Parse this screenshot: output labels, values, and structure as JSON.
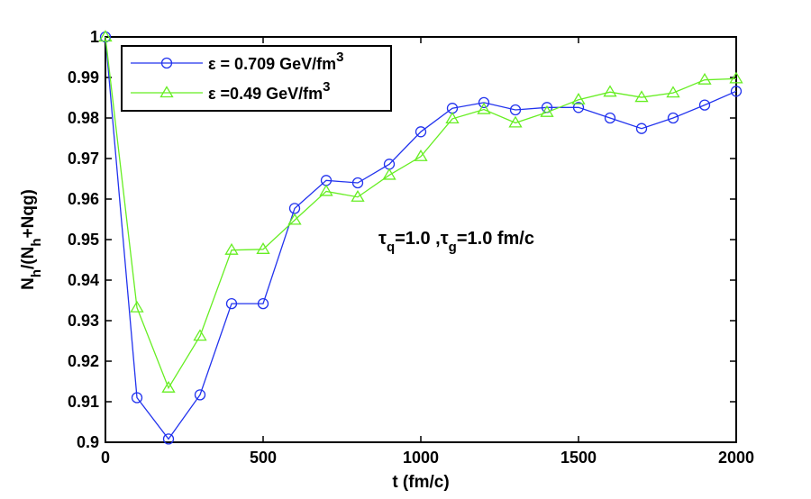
{
  "chart_data": {
    "type": "line",
    "title": "",
    "xlabel": "t (fm/c)",
    "ylabel_parts": {
      "main": "N",
      "sub1": "h",
      "mid": "/(N",
      "sub2": "h",
      "tail": "+Nqg)"
    },
    "xlim": [
      0,
      2000
    ],
    "ylim": [
      0.9,
      1.0
    ],
    "xticks": [
      0,
      500,
      1000,
      1500,
      2000
    ],
    "yticks": [
      0.9,
      0.91,
      0.92,
      0.93,
      0.94,
      0.95,
      0.96,
      0.97,
      0.98,
      0.99,
      1
    ],
    "xtick_labels": [
      "0",
      "500",
      "1000",
      "1500",
      "2000"
    ],
    "ytick_labels": [
      "0.9",
      "0.91",
      "0.92",
      "0.93",
      "0.94",
      "0.95",
      "0.96",
      "0.97",
      "0.98",
      "0.99",
      "1"
    ],
    "grid": false,
    "legend_position": "top-left",
    "series": [
      {
        "name": "ε = 0.709 GeV/fm3",
        "legend_parts": {
          "greek": "ε",
          "text": " = 0.709 GeV/fm",
          "sup": "3"
        },
        "color": "#2233ee",
        "marker": "circle",
        "x": [
          0,
          100,
          200,
          300,
          400,
          500,
          600,
          700,
          800,
          900,
          1000,
          1100,
          1200,
          1300,
          1400,
          1500,
          1600,
          1700,
          1800,
          1900,
          2000
        ],
        "y": [
          1.0,
          0.911,
          0.9008,
          0.9117,
          0.9342,
          0.9342,
          0.9577,
          0.9646,
          0.964,
          0.9686,
          0.9766,
          0.9824,
          0.9838,
          0.982,
          0.9826,
          0.9826,
          0.98,
          0.9774,
          0.98,
          0.9832,
          0.9866
        ]
      },
      {
        "name": "ε =0.49 GeV/fm3",
        "legend_parts": {
          "greek": "ε",
          "text": " =0.49 GeV/fm",
          "sup": "3"
        },
        "color": "#66ee22",
        "marker": "triangle",
        "x": [
          0,
          100,
          200,
          300,
          400,
          500,
          600,
          700,
          800,
          900,
          1000,
          1100,
          1200,
          1300,
          1400,
          1500,
          1600,
          1700,
          1800,
          1900,
          2000
        ],
        "y": [
          1.0,
          0.9332,
          0.9134,
          0.9262,
          0.9474,
          0.9476,
          0.9548,
          0.9619,
          0.9605,
          0.9659,
          0.9705,
          0.9798,
          0.9821,
          0.9788,
          0.9814,
          0.9845,
          0.9864,
          0.9851,
          0.9862,
          0.9894,
          0.9897
        ]
      }
    ],
    "annotation": {
      "tau1": "τ",
      "sub1": "q",
      "text1": "=1.0 ,",
      "tau2": "τ",
      "sub2": "g",
      "text2": "=1.0 fm/c"
    }
  }
}
